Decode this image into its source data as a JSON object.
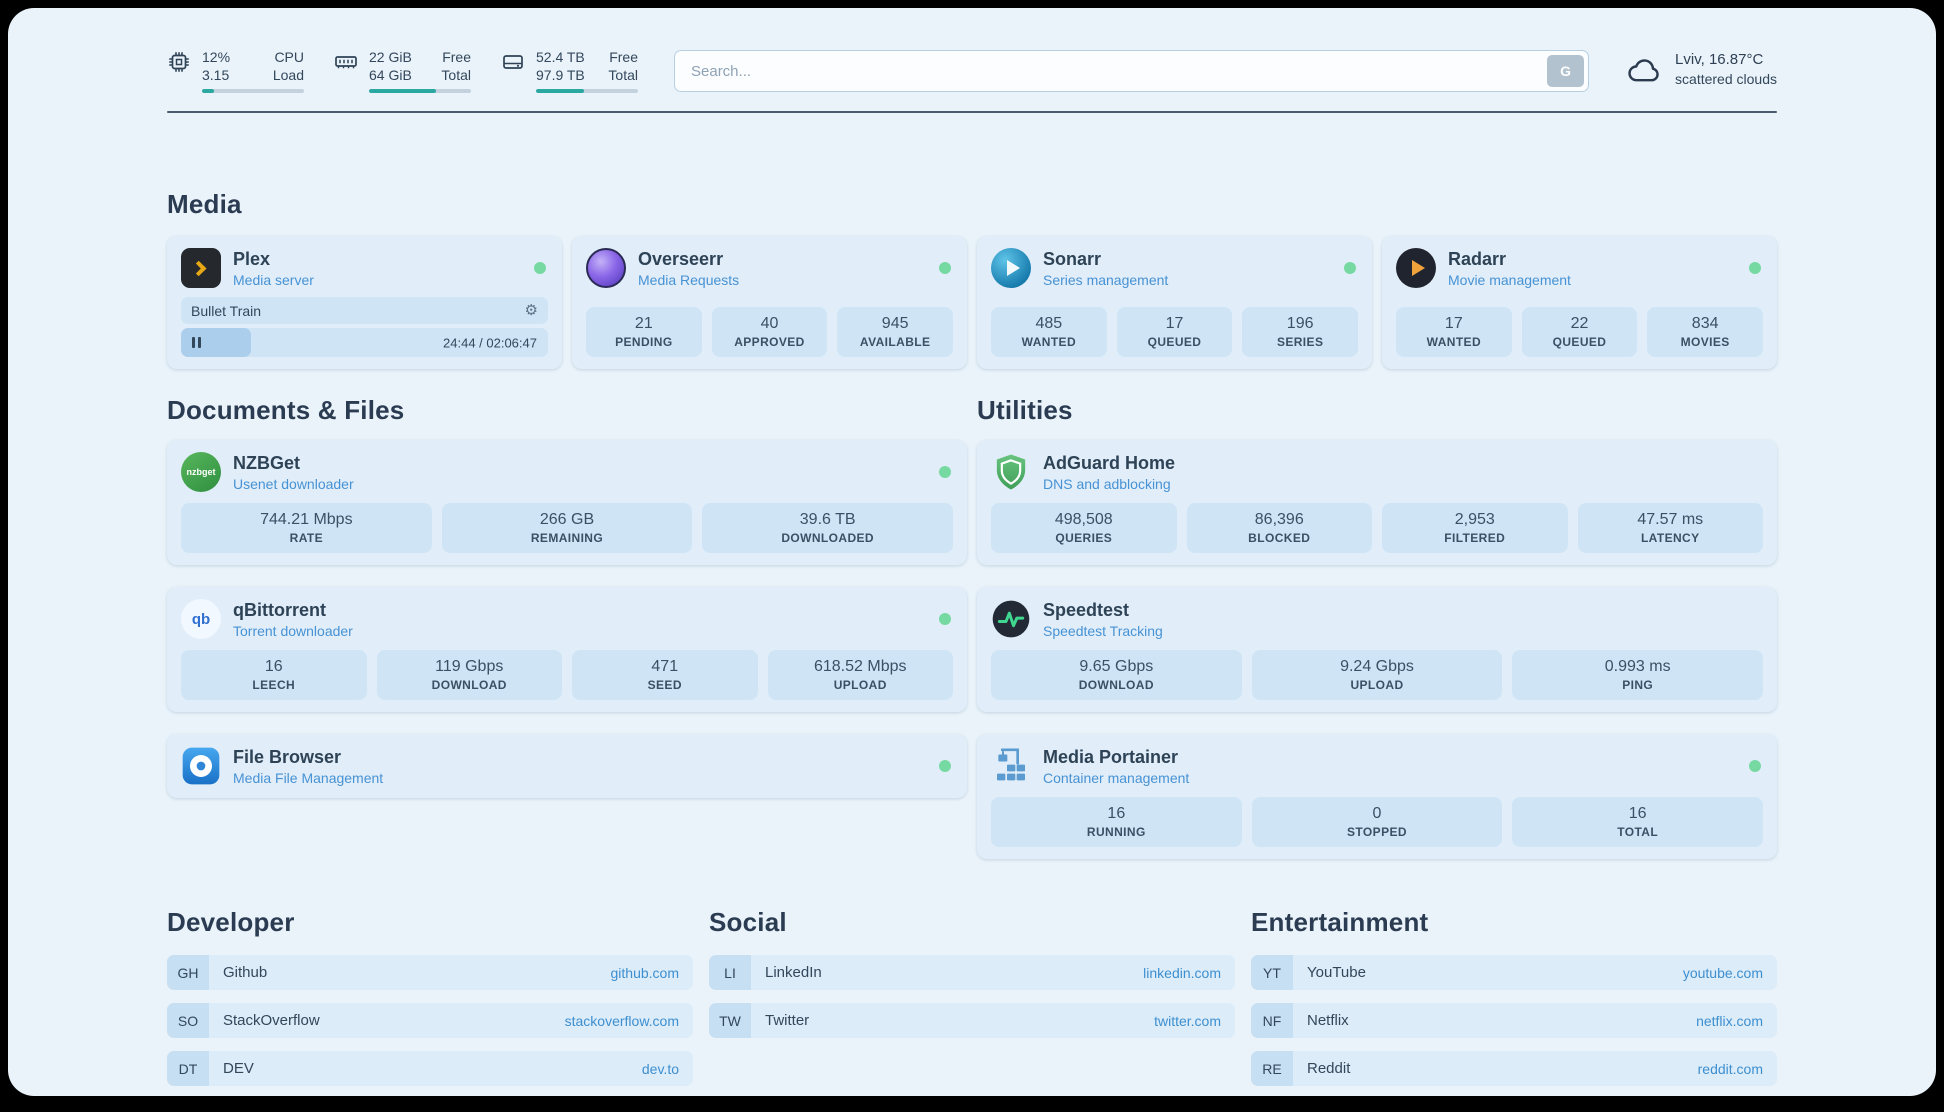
{
  "topbar": {
    "cpu": {
      "percent": "12%",
      "load": "3.15",
      "label_top": "CPU",
      "label_bottom": "Load",
      "bar_pct": 12
    },
    "ram": {
      "free": "22 GiB",
      "total": "64 GiB",
      "label_top": "Free",
      "label_bottom": "Total",
      "bar_pct": 66
    },
    "disk": {
      "free": "52.4 TB",
      "total": "97.9 TB",
      "label_top": "Free",
      "label_bottom": "Total",
      "bar_pct": 47
    },
    "search": {
      "placeholder": "Search...",
      "button_label": "G"
    },
    "weather": {
      "location": "Lviv, 16.87°C",
      "condition": "scattered clouds"
    }
  },
  "glyphs": {
    "gear": "⚙",
    "nzbget_label": "nzbget",
    "qbittorrent_label": "qb"
  },
  "media": {
    "title": "Media",
    "plex": {
      "name": "Plex",
      "subtitle": "Media server",
      "now_playing": "Bullet Train",
      "time": "24:44 / 02:06:47",
      "progress_pct": 19
    },
    "overseerr": {
      "name": "Overseerr",
      "subtitle": "Media Requests",
      "stats": [
        {
          "value": "21",
          "label": "PENDING"
        },
        {
          "value": "40",
          "label": "APPROVED"
        },
        {
          "value": "945",
          "label": "AVAILABLE"
        }
      ]
    },
    "sonarr": {
      "name": "Sonarr",
      "subtitle": "Series management",
      "stats": [
        {
          "value": "485",
          "label": "WANTED"
        },
        {
          "value": "17",
          "label": "QUEUED"
        },
        {
          "value": "196",
          "label": "SERIES"
        }
      ]
    },
    "radarr": {
      "name": "Radarr",
      "subtitle": "Movie management",
      "stats": [
        {
          "value": "17",
          "label": "WANTED"
        },
        {
          "value": "22",
          "label": "QUEUED"
        },
        {
          "value": "834",
          "label": "MOVIES"
        }
      ]
    }
  },
  "documents": {
    "title": "Documents & Files",
    "nzbget": {
      "name": "NZBGet",
      "subtitle": "Usenet downloader",
      "stats": [
        {
          "value": "744.21 Mbps",
          "label": "RATE"
        },
        {
          "value": "266 GB",
          "label": "REMAINING"
        },
        {
          "value": "39.6 TB",
          "label": "DOWNLOADED"
        }
      ]
    },
    "qbittorrent": {
      "name": "qBittorrent",
      "subtitle": "Torrent downloader",
      "stats": [
        {
          "value": "16",
          "label": "LEECH"
        },
        {
          "value": "119 Gbps",
          "label": "DOWNLOAD"
        },
        {
          "value": "471",
          "label": "SEED"
        },
        {
          "value": "618.52 Mbps",
          "label": "UPLOAD"
        }
      ]
    },
    "filebrowser": {
      "name": "File Browser",
      "subtitle": "Media File Management"
    }
  },
  "utilities": {
    "title": "Utilities",
    "adguard": {
      "name": "AdGuard Home",
      "subtitle": "DNS and adblocking",
      "stats": [
        {
          "value": "498,508",
          "label": "QUERIES"
        },
        {
          "value": "86,396",
          "label": "BLOCKED"
        },
        {
          "value": "2,953",
          "label": "FILTERED"
        },
        {
          "value": "47.57 ms",
          "label": "LATENCY"
        }
      ]
    },
    "speedtest": {
      "name": "Speedtest",
      "subtitle": "Speedtest Tracking",
      "stats": [
        {
          "value": "9.65 Gbps",
          "label": "DOWNLOAD"
        },
        {
          "value": "9.24 Gbps",
          "label": "UPLOAD"
        },
        {
          "value": "0.993 ms",
          "label": "PING"
        }
      ]
    },
    "portainer": {
      "name": "Media Portainer",
      "subtitle": "Container management",
      "stats": [
        {
          "value": "16",
          "label": "RUNNING"
        },
        {
          "value": "0",
          "label": "STOPPED"
        },
        {
          "value": "16",
          "label": "TOTAL"
        }
      ]
    }
  },
  "bookmarks": {
    "developer": {
      "title": "Developer",
      "links": [
        {
          "abbr": "GH",
          "name": "Github",
          "url": "github.com"
        },
        {
          "abbr": "SO",
          "name": "StackOverflow",
          "url": "stackoverflow.com"
        },
        {
          "abbr": "DT",
          "name": "DEV",
          "url": "dev.to"
        }
      ]
    },
    "social": {
      "title": "Social",
      "links": [
        {
          "abbr": "LI",
          "name": "LinkedIn",
          "url": "linkedin.com"
        },
        {
          "abbr": "TW",
          "name": "Twitter",
          "url": "twitter.com"
        }
      ]
    },
    "entertainment": {
      "title": "Entertainment",
      "links": [
        {
          "abbr": "YT",
          "name": "YouTube",
          "url": "youtube.com"
        },
        {
          "abbr": "NF",
          "name": "Netflix",
          "url": "netflix.com"
        },
        {
          "abbr": "RE",
          "name": "Reddit",
          "url": "reddit.com"
        }
      ]
    }
  }
}
